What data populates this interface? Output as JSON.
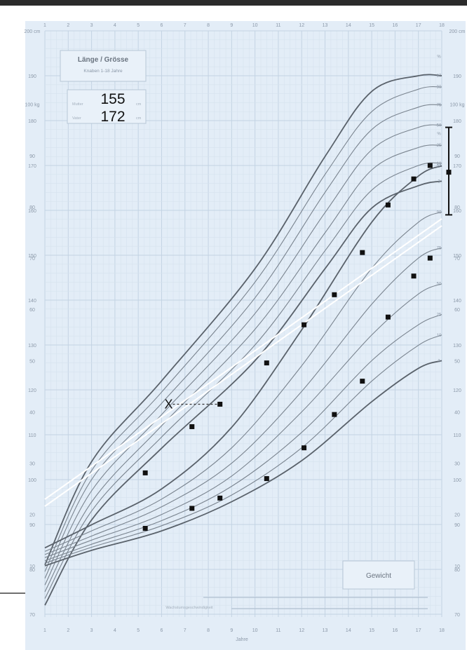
{
  "chart_data": {
    "type": "line",
    "title": "Länge / Grösse",
    "subtitle": "Knaben 1-18 Jahre",
    "xlabel": "Jahre",
    "x_ticks": [
      "1",
      "2",
      "3",
      "4",
      "5",
      "6",
      "7",
      "8",
      "9",
      "10",
      "11",
      "12",
      "13",
      "14",
      "15",
      "16",
      "17",
      "18"
    ],
    "height_ticks": [
      "200 cm",
      "190",
      "180",
      "170",
      "160",
      "150",
      "140",
      "130",
      "120",
      "110",
      "100",
      "90",
      "80",
      "70"
    ],
    "weight_ticks": [
      "100 kg",
      "90",
      "80",
      "70",
      "60",
      "50",
      "40",
      "30",
      "20",
      "10"
    ],
    "height_percentile_labels": [
      "%",
      "97",
      "90",
      "75",
      "50",
      "25",
      "10",
      "3"
    ],
    "weight_percentile_labels": [
      "%",
      "97",
      "90",
      "75",
      "50",
      "25",
      "10",
      "3"
    ],
    "height_box": {
      "label_a": "Mutter",
      "value_a": "155",
      "label_b": "Vater",
      "value_b": "172",
      "unit": "cm"
    },
    "weight_box_label": "Gewicht",
    "lower_legend_label": "Wachstumsgeschwindigkeit",
    "height_series": [
      {
        "x": 5.3,
        "y": 101.5
      },
      {
        "x": 7.3,
        "y": 111.8
      },
      {
        "x": 8.5,
        "y": 116.8
      },
      {
        "x": 10.5,
        "y": 126.0
      },
      {
        "x": 12.1,
        "y": 134.5
      },
      {
        "x": 13.4,
        "y": 141.2
      },
      {
        "x": 14.6,
        "y": 150.6
      },
      {
        "x": 15.7,
        "y": 161.2
      },
      {
        "x": 16.8,
        "y": 167.0
      },
      {
        "x": 17.5,
        "y": 170.0
      }
    ],
    "weight_series": [
      {
        "x": 5.3,
        "y": 17.3
      },
      {
        "x": 7.3,
        "y": 21.2
      },
      {
        "x": 8.5,
        "y": 23.2
      },
      {
        "x": 10.5,
        "y": 27.0
      },
      {
        "x": 12.1,
        "y": 33.0
      },
      {
        "x": 13.4,
        "y": 39.5
      },
      {
        "x": 14.6,
        "y": 46.0
      },
      {
        "x": 15.7,
        "y": 58.5
      },
      {
        "x": 16.8,
        "y": 66.5
      },
      {
        "x": 17.5,
        "y": 70.0
      }
    ],
    "projection": {
      "from_x": 6.3,
      "to_x": 8.5,
      "y": 116.8,
      "marker": "X"
    },
    "target_range": {
      "x": 18.3,
      "center": 168.5,
      "low": 159.0,
      "high": 178.5
    },
    "height_percentiles": [
      {
        "p": "97",
        "points": [
          [
            1,
            81
          ],
          [
            3,
            104
          ],
          [
            6,
            122
          ],
          [
            10,
            147
          ],
          [
            13,
            172
          ],
          [
            15,
            186.5
          ],
          [
            17,
            190
          ],
          [
            18,
            190
          ]
        ]
      },
      {
        "p": "90",
        "points": [
          [
            1,
            79.5
          ],
          [
            3,
            102
          ],
          [
            6,
            119.5
          ],
          [
            10,
            144
          ],
          [
            13,
            168
          ],
          [
            15,
            182
          ],
          [
            17,
            187
          ],
          [
            18,
            187.5
          ]
        ]
      },
      {
        "p": "75",
        "points": [
          [
            1,
            78
          ],
          [
            3,
            100
          ],
          [
            6,
            117
          ],
          [
            10,
            140.5
          ],
          [
            13,
            164
          ],
          [
            15,
            178
          ],
          [
            17,
            183
          ],
          [
            18,
            183.5
          ]
        ]
      },
      {
        "p": "50",
        "points": [
          [
            1,
            76.5
          ],
          [
            3,
            97.5
          ],
          [
            6,
            114.5
          ],
          [
            10,
            137
          ],
          [
            13,
            159.5
          ],
          [
            15,
            173.5
          ],
          [
            17,
            178.5
          ],
          [
            18,
            179
          ]
        ]
      },
      {
        "p": "25",
        "points": [
          [
            1,
            75
          ],
          [
            3,
            95
          ],
          [
            6,
            112
          ],
          [
            10,
            133.5
          ],
          [
            13,
            155
          ],
          [
            15,
            169
          ],
          [
            17,
            174
          ],
          [
            18,
            174.5
          ]
        ]
      },
      {
        "p": "10",
        "points": [
          [
            1,
            73.5
          ],
          [
            3,
            93
          ],
          [
            6,
            109.5
          ],
          [
            10,
            130
          ],
          [
            13,
            151
          ],
          [
            15,
            164.5
          ],
          [
            17,
            170
          ],
          [
            18,
            170.5
          ]
        ]
      },
      {
        "p": "3",
        "points": [
          [
            1,
            72
          ],
          [
            3,
            91
          ],
          [
            6,
            107
          ],
          [
            10,
            126.5
          ],
          [
            13,
            147
          ],
          [
            15,
            160.5
          ],
          [
            17,
            165.5
          ],
          [
            18,
            166.5
          ]
        ]
      }
    ],
    "weight_percentiles": [
      {
        "p": "97",
        "points": [
          [
            1,
            13.5
          ],
          [
            3,
            18
          ],
          [
            6,
            25
          ],
          [
            9,
            37
          ],
          [
            12,
            56
          ],
          [
            15,
            77
          ],
          [
            17,
            86
          ],
          [
            18,
            88
          ]
        ]
      },
      {
        "p": "90",
        "points": [
          [
            1,
            12.8
          ],
          [
            3,
            16.8
          ],
          [
            6,
            23
          ],
          [
            9,
            33
          ],
          [
            12,
            49
          ],
          [
            15,
            68
          ],
          [
            17,
            77
          ],
          [
            18,
            79
          ]
        ]
      },
      {
        "p": "75",
        "points": [
          [
            1,
            12.2
          ],
          [
            3,
            15.8
          ],
          [
            6,
            21.5
          ],
          [
            9,
            30
          ],
          [
            12,
            44
          ],
          [
            15,
            61
          ],
          [
            17,
            70
          ],
          [
            18,
            72
          ]
        ]
      },
      {
        "p": "50",
        "points": [
          [
            1,
            11.6
          ],
          [
            3,
            15
          ],
          [
            6,
            20
          ],
          [
            9,
            27.5
          ],
          [
            12,
            40
          ],
          [
            15,
            55
          ],
          [
            17,
            63
          ],
          [
            18,
            65
          ]
        ]
      },
      {
        "p": "25",
        "points": [
          [
            1,
            11
          ],
          [
            3,
            14.2
          ],
          [
            6,
            18.8
          ],
          [
            9,
            25.5
          ],
          [
            12,
            36
          ],
          [
            15,
            50
          ],
          [
            17,
            57
          ],
          [
            18,
            59
          ]
        ]
      },
      {
        "p": "10",
        "points": [
          [
            1,
            10.5
          ],
          [
            3,
            13.6
          ],
          [
            6,
            17.8
          ],
          [
            9,
            23.8
          ],
          [
            12,
            33
          ],
          [
            15,
            46
          ],
          [
            17,
            53
          ],
          [
            18,
            55
          ]
        ]
      },
      {
        "p": "3",
        "points": [
          [
            1,
            10
          ],
          [
            3,
            13
          ],
          [
            6,
            16.8
          ],
          [
            9,
            22.5
          ],
          [
            12,
            30.5
          ],
          [
            15,
            42
          ],
          [
            17,
            48.5
          ],
          [
            18,
            50
          ]
        ]
      }
    ],
    "height_ylim": [
      70,
      200
    ],
    "weight_ylim": [
      0,
      100
    ],
    "xlim": [
      1,
      18
    ],
    "grid": true,
    "colors": {
      "background": "#e3edf7",
      "grid_major": "#c3d3e3",
      "grid_minor": "#d6e2ee",
      "curve": "#7a848f",
      "curve_outer": "#5a626b",
      "point": "#111111"
    }
  }
}
